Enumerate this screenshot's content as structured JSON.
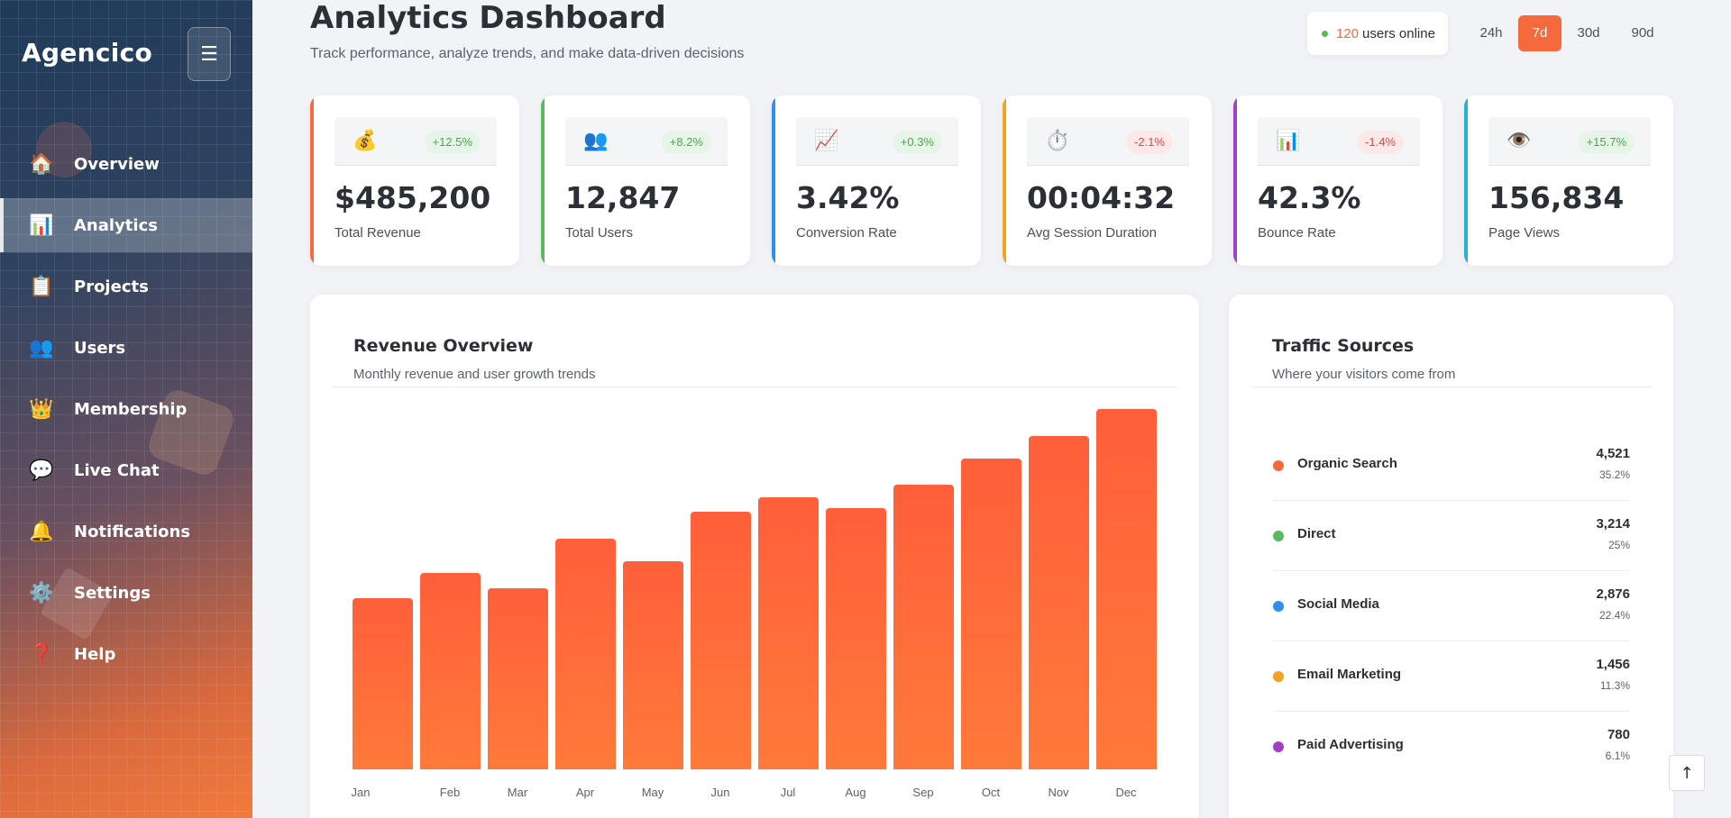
{
  "brand": "Agencico",
  "menu_toggle_icon": "☰",
  "sidebar": {
    "items": [
      {
        "label": "Overview",
        "icon": "house-icon",
        "glyph": "🏠"
      },
      {
        "label": "Analytics",
        "icon": "bar-chart-icon",
        "glyph": "📊",
        "active": true
      },
      {
        "label": "Projects",
        "icon": "clipboard-icon",
        "glyph": "📋"
      },
      {
        "label": "Users",
        "icon": "users-icon",
        "glyph": "👥"
      },
      {
        "label": "Membership",
        "icon": "crown-icon",
        "glyph": "👑"
      },
      {
        "label": "Live Chat",
        "icon": "speech-bubble-icon",
        "glyph": "💬"
      },
      {
        "label": "Notifications",
        "icon": "bell-icon",
        "glyph": "🔔"
      },
      {
        "label": "Settings",
        "icon": "gear-icon",
        "glyph": "⚙️"
      },
      {
        "label": "Help",
        "icon": "question-icon",
        "glyph": "❓"
      }
    ]
  },
  "header": {
    "title": "Analytics Dashboard",
    "subtitle": "Track performance, analyze trends, and make data-driven decisions",
    "online_count": "120",
    "online_text": "users online",
    "ranges": [
      "24h",
      "7d",
      "30d",
      "90d"
    ],
    "active_range": "7d"
  },
  "stats": [
    {
      "glyph": "💰",
      "icon": "money-bag-icon",
      "badge": "+12.5%",
      "trend": "up",
      "value": "$485,200",
      "label": "Total Revenue",
      "accent": "#f46a3c"
    },
    {
      "glyph": "👥",
      "icon": "users-icon",
      "badge": "+8.2%",
      "trend": "up",
      "value": "12,847",
      "label": "Total Users",
      "accent": "#5cb85c"
    },
    {
      "glyph": "📈",
      "icon": "trend-up-icon",
      "badge": "+0.3%",
      "trend": "up",
      "value": "3.42%",
      "label": "Conversion Rate",
      "accent": "#2d8ff0"
    },
    {
      "glyph": "⏱️",
      "icon": "stopwatch-icon",
      "badge": "-2.1%",
      "trend": "down",
      "value": "00:04:32",
      "label": "Avg Session Duration",
      "accent": "#f4a020"
    },
    {
      "glyph": "📊",
      "icon": "bar-chart-icon",
      "badge": "-1.4%",
      "trend": "down",
      "value": "42.3%",
      "label": "Bounce Rate",
      "accent": "#a23fc8"
    },
    {
      "glyph": "👁️",
      "icon": "eye-icon",
      "badge": "+15.7%",
      "trend": "up",
      "value": "156,834",
      "label": "Page Views",
      "accent": "#1fb6d4"
    }
  ],
  "revenue": {
    "title": "Revenue Overview",
    "subtitle": "Monthly revenue and user growth trends"
  },
  "chart_data": {
    "type": "bar",
    "title": "Revenue Overview",
    "categories": [
      "Jan",
      "Feb",
      "Mar",
      "Apr",
      "May",
      "Jun",
      "Jul",
      "Aug",
      "Sep",
      "Oct",
      "Nov",
      "Dec"
    ],
    "values": [
      190,
      219,
      202,
      257,
      232,
      287,
      303,
      291,
      317,
      346,
      371,
      401
    ],
    "ylim": [
      0,
      401
    ],
    "grid": false,
    "color": "#ff6a3a"
  },
  "traffic": {
    "title": "Traffic Sources",
    "subtitle": "Where your visitors come from",
    "sources": [
      {
        "name": "Organic Search",
        "count": "4,521",
        "pct": "35.2%",
        "color": "#f46a3c"
      },
      {
        "name": "Direct",
        "count": "3,214",
        "pct": "25%",
        "color": "#5cb85c"
      },
      {
        "name": "Social Media",
        "count": "2,876",
        "pct": "22.4%",
        "color": "#2d8ff0"
      },
      {
        "name": "Email Marketing",
        "count": "1,456",
        "pct": "11.3%",
        "color": "#f4a020"
      },
      {
        "name": "Paid Advertising",
        "count": "780",
        "pct": "6.1%",
        "color": "#a23fc8"
      }
    ]
  },
  "scroll_top_icon": "↑"
}
